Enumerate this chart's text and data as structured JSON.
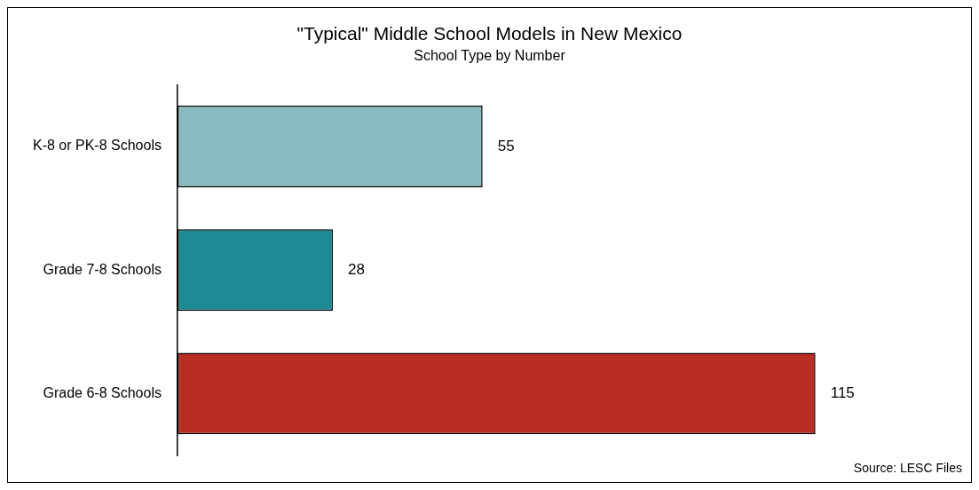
{
  "chart_data": {
    "type": "bar",
    "orientation": "horizontal",
    "title": "\"Typical\" Middle School Models in New Mexico",
    "subtitle": "School Type by Number",
    "categories": [
      "K-8 or PK-8 Schools",
      "Grade 7-8 Schools",
      "Grade 6-8 Schools"
    ],
    "values": [
      55,
      28,
      115
    ],
    "colors": [
      "#8bbbc2",
      "#1e8a93",
      "#b82d21"
    ],
    "data_labels": true,
    "annotations": [
      "Source: LESC Files"
    ]
  }
}
